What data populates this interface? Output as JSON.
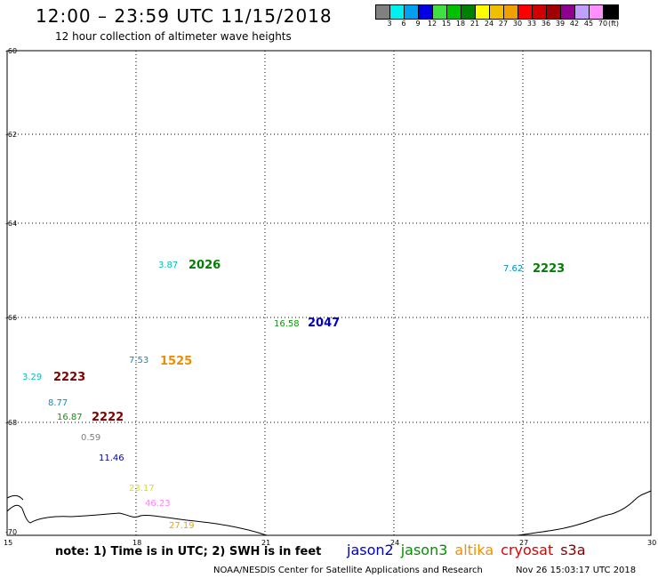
{
  "header": {
    "title": "12:00 – 23:59 UTC 11/15/2018",
    "subtitle": "12 hour collection of altimeter wave heights"
  },
  "legend": {
    "unit": "(ft)",
    "colors": [
      "#808080",
      "#00f0f0",
      "#00a0f0",
      "#0000e0",
      "#40e040",
      "#00c000",
      "#008000",
      "#ffff00",
      "#f0c000",
      "#f0a000",
      "#ff0000",
      "#d00000",
      "#a00000",
      "#900090",
      "#c0a0ff",
      "#ff90ff",
      "#000000"
    ],
    "labels": [
      "3",
      "6",
      "9",
      "12",
      "15",
      "18",
      "21",
      "24",
      "27",
      "30",
      "33",
      "36",
      "39",
      "42",
      "45",
      "70"
    ]
  },
  "map": {
    "lat_labels": [
      "-60",
      "-62",
      "-64",
      "-66",
      "-68",
      "-70"
    ],
    "lon_labels": [
      "15",
      "18",
      "21",
      "24",
      "27",
      "30"
    ]
  },
  "observations": [
    {
      "text": "3.87",
      "color": "#00c0c0"
    },
    {
      "text": "2026",
      "color": "#008000"
    },
    {
      "text": "7.62",
      "color": "#0090d0"
    },
    {
      "text": "2223",
      "color": "#008000"
    },
    {
      "text": "16.58",
      "color": "#00a000"
    },
    {
      "text": "2047",
      "color": "#0000c0"
    },
    {
      "text": "7.53",
      "color": "#0090d0"
    },
    {
      "text": "1525",
      "color": "#f08c00"
    },
    {
      "text": "3.29",
      "color": "#00c0c0"
    },
    {
      "text": "2223",
      "color": "#800000"
    },
    {
      "text": "8.77",
      "color": "#0090d0"
    },
    {
      "text": "16.87",
      "color": "#00a000"
    },
    {
      "text": "2222",
      "color": "#800000"
    },
    {
      "text": "0.59",
      "color": "#808080"
    },
    {
      "text": "11.46",
      "color": "#0000c0"
    },
    {
      "text": "23.17",
      "color": "#e0e000"
    },
    {
      "text": "46.23",
      "color": "#ff80ff"
    },
    {
      "text": "27.19",
      "color": "#f0a000"
    }
  ],
  "footer": {
    "note": "note: 1) Time is in UTC; 2) SWH is in feet",
    "satellites": [
      {
        "name": "jason2",
        "color": "#0000c0"
      },
      {
        "name": "jason3",
        "color": "#009000"
      },
      {
        "name": "altika",
        "color": "#f09000"
      },
      {
        "name": "cryosat",
        "color": "#e00000"
      },
      {
        "name": "s3a",
        "color": "#800000"
      }
    ],
    "credit": "NOAA/NESDIS Center for Satellite Applications and Research",
    "timestamp": "Nov 26 15:03:17 UTC 2018"
  }
}
